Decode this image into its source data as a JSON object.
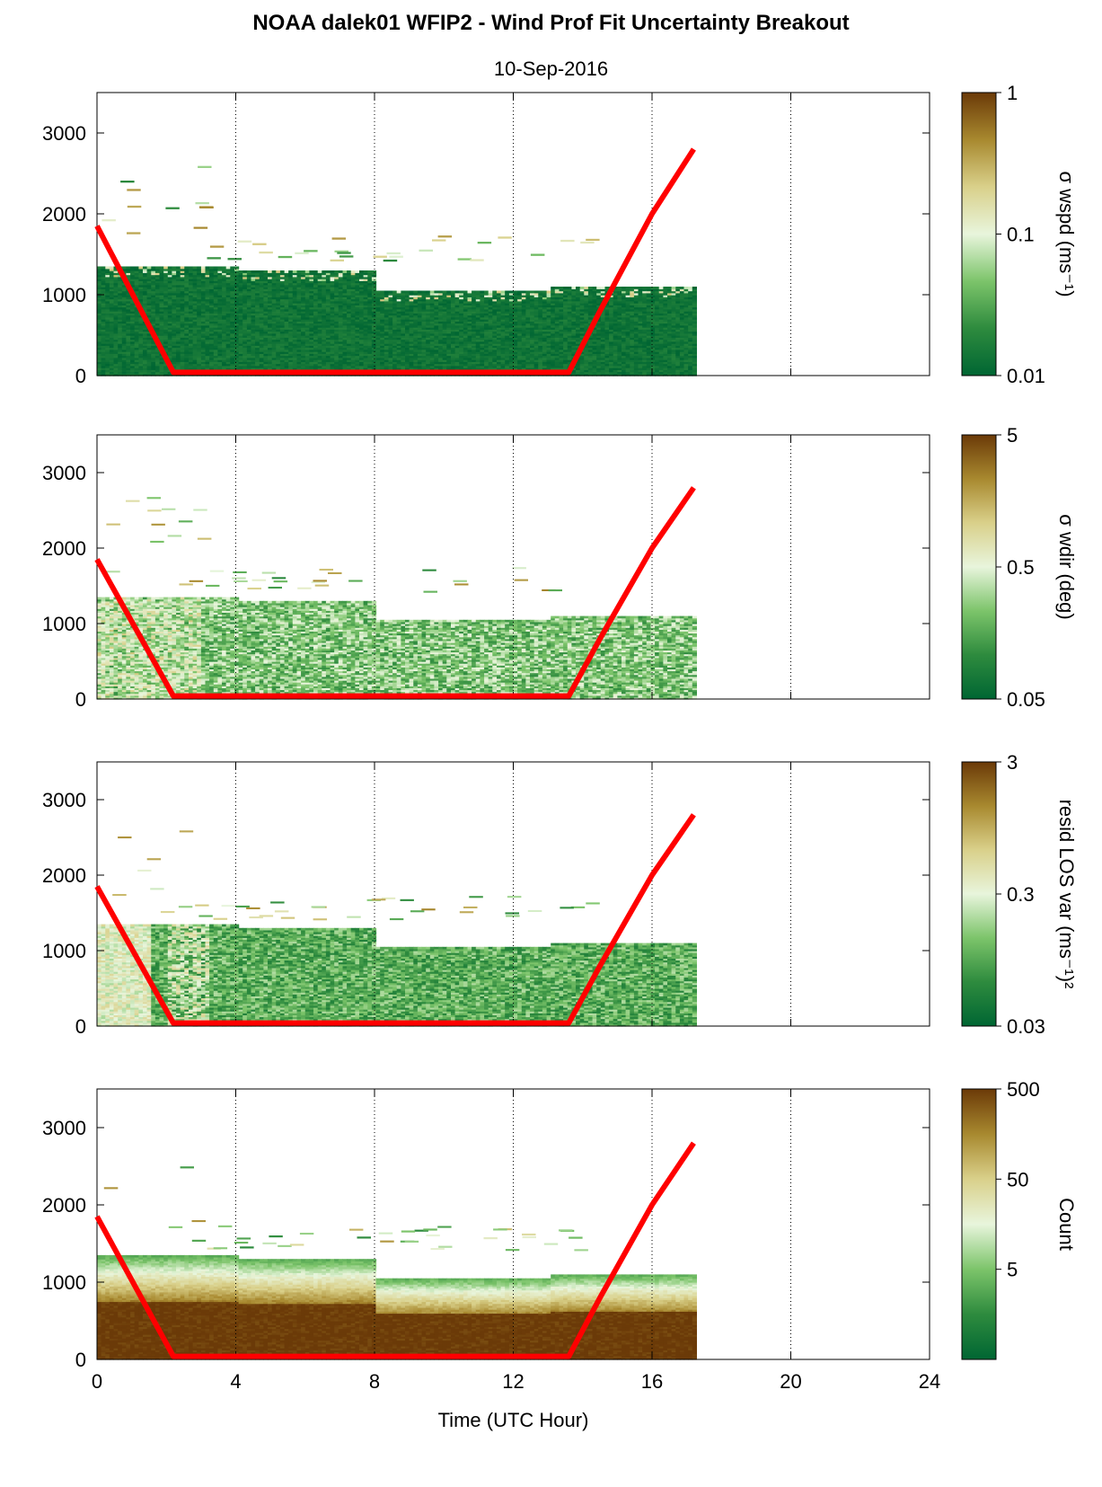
{
  "figure": {
    "title": "NOAA dalek01 WFIP2 - Wind Prof Fit Uncertainty Breakout",
    "subtitle": "10-Sep-2016",
    "xlabel": "Time (UTC Hour)"
  },
  "chart_data": [
    {
      "type": "heatmap",
      "panel": "sigma-wspd",
      "colorbar_label": "σ wspd (ms⁻¹)",
      "colorbar_scale": "log",
      "colorbar_range": [
        0.01,
        1
      ],
      "colorbar_ticks": [
        "1",
        "0.1",
        "0.01"
      ],
      "xlim": [
        0,
        24
      ],
      "ylim": [
        0,
        3500
      ],
      "x_ticks": [
        "0",
        "4",
        "8",
        "12",
        "16",
        "20",
        "24"
      ],
      "y_ticks": [
        "0",
        "1000",
        "2000",
        "3000"
      ],
      "data_extent": {
        "x": [
          0,
          17.2
        ],
        "y": [
          0,
          1350
        ]
      },
      "dominant_level": 0.01,
      "overlay_line": {
        "x": [
          0,
          2.2,
          13.6,
          14.5,
          16,
          17.2
        ],
        "y": [
          1850,
          40,
          40,
          800,
          2000,
          2800
        ]
      }
    },
    {
      "type": "heatmap",
      "panel": "sigma-wdir",
      "colorbar_label": "σ wdir (deg)",
      "colorbar_scale": "log",
      "colorbar_range": [
        0.05,
        5
      ],
      "colorbar_ticks": [
        "5",
        "0.5",
        "0.05"
      ],
      "xlim": [
        0,
        24
      ],
      "ylim": [
        0,
        3500
      ],
      "x_ticks": [
        "0",
        "4",
        "8",
        "12",
        "16",
        "20",
        "24"
      ],
      "y_ticks": [
        "0",
        "1000",
        "2000",
        "3000"
      ],
      "data_extent": {
        "x": [
          0,
          17.2
        ],
        "y": [
          0,
          1350
        ]
      },
      "dominant_level": 0.15,
      "overlay_line": {
        "x": [
          0,
          2.2,
          13.6,
          14.5,
          16,
          17.2
        ],
        "y": [
          1850,
          40,
          40,
          800,
          2000,
          2800
        ]
      }
    },
    {
      "type": "heatmap",
      "panel": "resid-los-var",
      "colorbar_label": "resid LOS var (ms⁻¹)²",
      "colorbar_scale": "log",
      "colorbar_range": [
        0.03,
        3
      ],
      "colorbar_ticks": [
        "3",
        "0.3",
        "0.03"
      ],
      "xlim": [
        0,
        24
      ],
      "ylim": [
        0,
        3500
      ],
      "x_ticks": [
        "0",
        "4",
        "8",
        "12",
        "16",
        "20",
        "24"
      ],
      "y_ticks": [
        "0",
        "1000",
        "2000",
        "3000"
      ],
      "data_extent": {
        "x": [
          0,
          17.2
        ],
        "y": [
          0,
          1350
        ]
      },
      "dominant_level": 0.06,
      "overlay_line": {
        "x": [
          0,
          2.2,
          13.6,
          14.5,
          16,
          17.2
        ],
        "y": [
          1850,
          40,
          40,
          800,
          2000,
          2800
        ]
      }
    },
    {
      "type": "heatmap",
      "panel": "count",
      "colorbar_label": "Count",
      "colorbar_scale": "log",
      "colorbar_range": [
        0.5,
        500
      ],
      "colorbar_ticks": [
        "500",
        "50",
        "5"
      ],
      "xlim": [
        0,
        24
      ],
      "ylim": [
        0,
        3500
      ],
      "x_ticks": [
        "0",
        "4",
        "8",
        "12",
        "16",
        "20",
        "24"
      ],
      "y_ticks": [
        "0",
        "1000",
        "2000",
        "3000"
      ],
      "data_extent": {
        "x": [
          0,
          17.2
        ],
        "y": [
          0,
          1350
        ]
      },
      "dominant_level": 500,
      "overlay_line": {
        "x": [
          0,
          2.2,
          13.6,
          14.5,
          16,
          17.2
        ],
        "y": [
          1850,
          40,
          40,
          800,
          2000,
          2800
        ]
      }
    }
  ],
  "colors": {
    "overlay": "#ff0000",
    "colormap": [
      "#006633",
      "#2e8b3e",
      "#7cc46a",
      "#e8f5dc",
      "#d9d08a",
      "#a8892f",
      "#6b3a08"
    ]
  }
}
